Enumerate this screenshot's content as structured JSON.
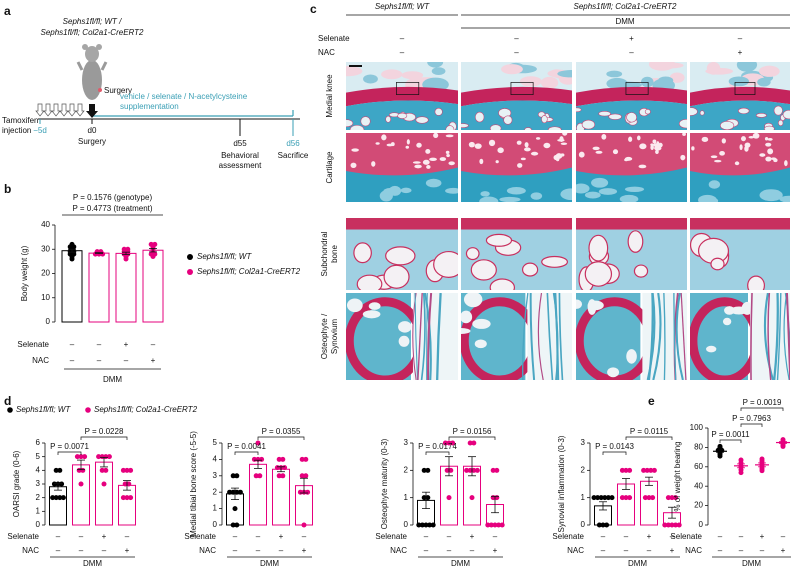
{
  "panel_labels": [
    "a",
    "b",
    "c",
    "d",
    "e"
  ],
  "timeline": {
    "genotype_lines": [
      "Sephs1fl/fl; WT /",
      "Sephs1fl/fl; Col2a1-CreERT2"
    ],
    "mouse_label": "Surgery",
    "supplement_lines": [
      "vehicle / selenate / N-acetylcysteine",
      "supplementation"
    ],
    "injection_lines": [
      "Tamoxifen",
      "injection"
    ],
    "start": "−5d",
    "surgery_day": "d0",
    "surgery": "Surgery",
    "behavior_day": "d55",
    "behavior_lines": [
      "Behavioral",
      "assessment"
    ],
    "sacrifice_day": "d56",
    "sacrifice": "Sacrifice"
  },
  "histology": {
    "header_wt": "Sephs1fl/fl; WT",
    "header_ko": "Sephs1fl/fl; Col2a1-CreERT2",
    "group": "DMM",
    "conditions": [
      {
        "name": "Selenate",
        "signs": [
          "–",
          "–",
          "+",
          "–"
        ]
      },
      {
        "name": "NAC",
        "signs": [
          "–",
          "–",
          "–",
          "+"
        ]
      }
    ],
    "rows": [
      [
        "Medial knee"
      ],
      [
        "Cartilage"
      ],
      [
        "Subchondral",
        "bone"
      ],
      [
        "Osteophyte /",
        "Synovium"
      ]
    ]
  },
  "legend_d": [
    {
      "name": "Sephs1fl/fl; WT",
      "color": "#000000"
    },
    {
      "name": "Sephs1fl/fl; Col2a1-CreERT2",
      "color": "#e6007e"
    }
  ],
  "chart_data": [
    {
      "type": "bar",
      "ylabel": "Body weight (g)",
      "ylim": [
        0,
        40
      ],
      "yticks": [
        0,
        10,
        20,
        30,
        40
      ],
      "colors": [
        "#000000",
        "#e6007e",
        "#e6007e",
        "#e6007e"
      ],
      "means": [
        29.4,
        28.4,
        28.3,
        29.6
      ],
      "errors": [
        0.6,
        0.2,
        0.5,
        0.7
      ],
      "points": [
        [
          26,
          27,
          28,
          28,
          29,
          29,
          30,
          31,
          31,
          32
        ],
        [
          28,
          28,
          28,
          28.5,
          29,
          29
        ],
        [
          26,
          27,
          28,
          28,
          29,
          29,
          30,
          30
        ],
        [
          27,
          28,
          28,
          29,
          30,
          31,
          32,
          32
        ]
      ],
      "conditions": [
        {
          "name": "Selenate",
          "signs": [
            "–",
            "–",
            "+",
            "–"
          ]
        },
        {
          "name": "NAC",
          "signs": [
            "–",
            "–",
            "–",
            "+"
          ]
        }
      ],
      "group_label": "DMM",
      "annotations": [
        "P = 0.1576 (genotype)",
        "P = 0.4773 (treatment)"
      ],
      "legend": [
        {
          "name": "Sephs1fl/fl; WT",
          "color": "#000000"
        },
        {
          "name": "Sephs1fl/fl; Col2a1-CreERT2",
          "color": "#e6007e"
        }
      ]
    },
    {
      "type": "bar",
      "ylabel": "OARSI grade (0-6)",
      "ylim": [
        0,
        6
      ],
      "yticks": [
        0,
        1,
        2,
        3,
        4,
        5,
        6
      ],
      "colors": [
        "#000000",
        "#e6007e",
        "#e6007e",
        "#e6007e"
      ],
      "means": [
        2.8,
        4.4,
        4.6,
        2.9
      ],
      "errors": [
        0.25,
        0.35,
        0.35,
        0.35
      ],
      "points": [
        [
          2,
          2,
          2,
          2,
          3,
          3,
          3,
          4,
          4
        ],
        [
          3,
          4,
          4,
          5,
          5,
          5
        ],
        [
          3,
          4,
          4,
          5,
          5,
          5,
          5
        ],
        [
          2,
          2,
          2,
          3,
          3,
          4,
          4,
          4
        ]
      ],
      "conditions": [
        {
          "name": "Selenate",
          "signs": [
            "–",
            "–",
            "+",
            "–"
          ]
        },
        {
          "name": "NAC",
          "signs": [
            "–",
            "–",
            "–",
            "+"
          ]
        }
      ],
      "group_label": "DMM",
      "comparisons": [
        {
          "label": "P = 0.0071",
          "groups": [
            0,
            1
          ]
        },
        {
          "label": "P = 0.0228",
          "groups": [
            1,
            3
          ]
        }
      ]
    },
    {
      "type": "bar",
      "ylabel": "Medial tibial bone score (-5-5)",
      "ylim": [
        0,
        5
      ],
      "yticks": [
        0,
        1,
        2,
        3,
        4,
        5
      ],
      "colors": [
        "#000000",
        "#e6007e",
        "#e6007e",
        "#e6007e"
      ],
      "means": [
        1.9,
        3.7,
        3.4,
        2.4
      ],
      "errors": [
        0.35,
        0.25,
        0.15,
        0.45
      ],
      "points": [
        [
          0,
          0,
          1,
          2,
          2,
          2,
          2,
          3,
          3
        ],
        [
          3,
          3,
          4,
          4,
          4,
          5
        ],
        [
          3,
          3,
          3.5,
          3.5,
          3.5,
          4,
          4
        ],
        [
          0,
          2,
          2,
          2,
          3,
          3,
          4,
          4
        ]
      ],
      "conditions": [
        {
          "name": "Selenate",
          "signs": [
            "–",
            "–",
            "+",
            "–"
          ]
        },
        {
          "name": "NAC",
          "signs": [
            "–",
            "–",
            "–",
            "+"
          ]
        }
      ],
      "group_label": "DMM",
      "comparisons": [
        {
          "label": "P = 0.0041",
          "groups": [
            0,
            1
          ]
        },
        {
          "label": "P = 0.0355",
          "groups": [
            1,
            3
          ]
        }
      ]
    },
    {
      "type": "bar",
      "ylabel": "Osteophyte maturity (0-3)",
      "ylim": [
        0,
        3
      ],
      "yticks": [
        0,
        1,
        2,
        3
      ],
      "colors": [
        "#000000",
        "#e6007e",
        "#e6007e",
        "#e6007e"
      ],
      "means": [
        0.9,
        2.15,
        2.15,
        0.75
      ],
      "errors": [
        0.3,
        0.35,
        0.35,
        0.3
      ],
      "points": [
        [
          0,
          0,
          0,
          0,
          0,
          1,
          1,
          2,
          2
        ],
        [
          1,
          2,
          2,
          3,
          3,
          3
        ],
        [
          1,
          2,
          2,
          2,
          2,
          3,
          3
        ],
        [
          0,
          0,
          0,
          0,
          0,
          1,
          1,
          2,
          2
        ]
      ],
      "conditions": [
        {
          "name": "Selenate",
          "signs": [
            "–",
            "–",
            "+",
            "–"
          ]
        },
        {
          "name": "NAC",
          "signs": [
            "–",
            "–",
            "–",
            "+"
          ]
        }
      ],
      "group_label": "DMM",
      "comparisons": [
        {
          "label": "P = 0.0174",
          "groups": [
            0,
            1
          ]
        },
        {
          "label": "P = 0.0156",
          "groups": [
            1,
            3
          ]
        }
      ]
    },
    {
      "type": "bar",
      "ylabel": "Synovial inflammation (0-3)",
      "ylim": [
        0,
        3
      ],
      "yticks": [
        0,
        1,
        2,
        3
      ],
      "colors": [
        "#000000",
        "#e6007e",
        "#e6007e",
        "#e6007e"
      ],
      "means": [
        0.7,
        1.5,
        1.6,
        0.45
      ],
      "errors": [
        0.15,
        0.2,
        0.15,
        0.2
      ],
      "points": [
        [
          0,
          0,
          0,
          1,
          1,
          1,
          1,
          1,
          1
        ],
        [
          1,
          1,
          1,
          2,
          2,
          2
        ],
        [
          1,
          1,
          1,
          2,
          2,
          2,
          2
        ],
        [
          0,
          0,
          0,
          0,
          0,
          1,
          1,
          1
        ]
      ],
      "conditions": [
        {
          "name": "Selenate",
          "signs": [
            "–",
            "–",
            "+",
            "–"
          ]
        },
        {
          "name": "NAC",
          "signs": [
            "–",
            "–",
            "–",
            "+"
          ]
        }
      ],
      "group_label": "DMM",
      "comparisons": [
        {
          "label": "P = 0.0143",
          "groups": [
            0,
            1
          ]
        },
        {
          "label": "P = 0.0115",
          "groups": [
            1,
            3
          ]
        }
      ]
    },
    {
      "type": "dot",
      "ylabel": "% of weight bearing",
      "ylim": [
        0,
        100
      ],
      "yticks": [
        0,
        20,
        40,
        60,
        80,
        100
      ],
      "colors": [
        "#000000",
        "#e6007e",
        "#e6007e",
        "#e6007e"
      ],
      "means": [
        76,
        61,
        62,
        85
      ],
      "errors": [
        1,
        2,
        2,
        1
      ],
      "points": [
        [
          71,
          73,
          74,
          75,
          76,
          77,
          77,
          78,
          80,
          81
        ],
        [
          54,
          57,
          60,
          61,
          64,
          67
        ],
        [
          56,
          58,
          60,
          62,
          64,
          66,
          68
        ],
        [
          81,
          82,
          83,
          84,
          85,
          86,
          88
        ]
      ],
      "conditions": [
        {
          "name": "Selenate",
          "signs": [
            "–",
            "–",
            "+",
            "–"
          ]
        },
        {
          "name": "NAC",
          "signs": [
            "–",
            "–",
            "–",
            "+"
          ]
        }
      ],
      "group_label": "DMM",
      "comparisons": [
        {
          "label": "P = 0.0011",
          "groups": [
            0,
            1
          ]
        },
        {
          "label": "P = 0.7963",
          "groups": [
            1,
            2
          ]
        },
        {
          "label": "P = 0.0019",
          "groups": [
            1,
            3
          ]
        }
      ]
    }
  ]
}
